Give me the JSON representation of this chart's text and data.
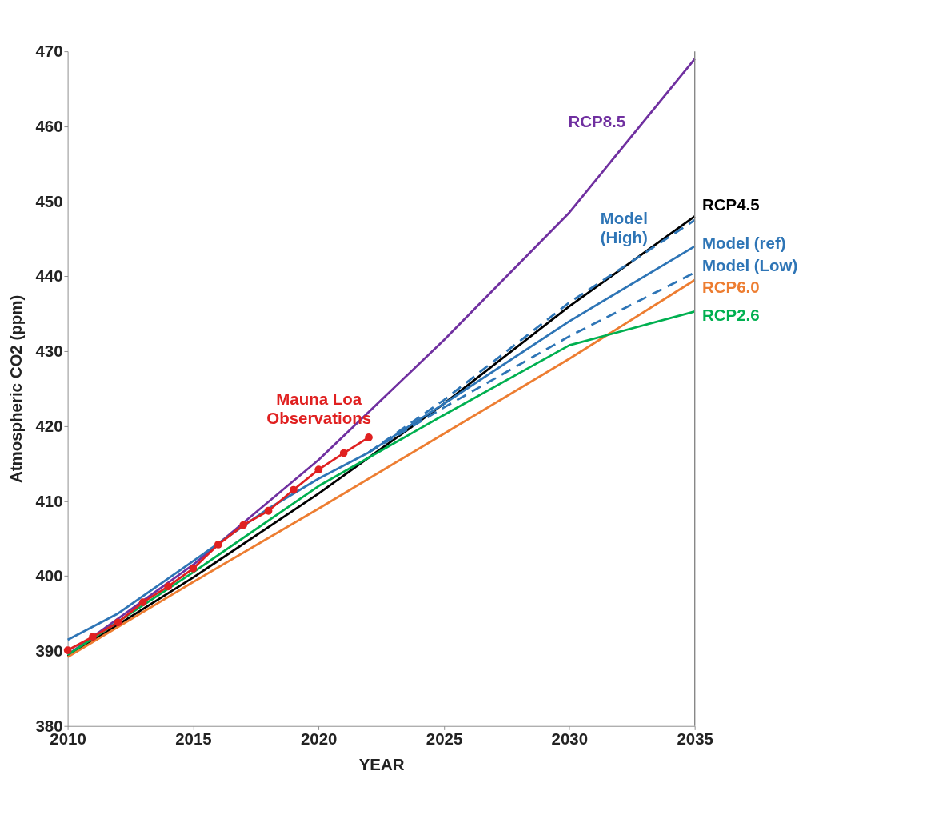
{
  "chart_data": {
    "type": "line",
    "xlabel": "YEAR",
    "ylabel": "Atmospheric CO2 (ppm)",
    "xlim": [
      2010,
      2035
    ],
    "xticks": [
      2010,
      2015,
      2020,
      2025,
      2030,
      2035
    ],
    "ylim": [
      380,
      470
    ],
    "yticks": [
      380,
      390,
      400,
      410,
      420,
      430,
      440,
      450,
      460,
      470
    ],
    "grid": false,
    "marker": "none",
    "line_style": "solid",
    "series": [
      {
        "name": "RCP8.5",
        "color": "#7030a0",
        "x": [
          2010,
          2015,
          2020,
          2025,
          2030,
          2035
        ],
        "values": [
          389.5,
          401.5,
          415.5,
          431.5,
          448.5,
          469
        ]
      },
      {
        "name": "RCP4.5",
        "color": "#000000",
        "x": [
          2010,
          2015,
          2020,
          2025,
          2030,
          2035
        ],
        "values": [
          389.3,
          399.8,
          411,
          423,
          436,
          448
        ]
      },
      {
        "name": "Model (ref)",
        "color": "#2e75b6",
        "x": [
          2010,
          2012,
          2015,
          2018,
          2020,
          2022,
          2025,
          2030,
          2035
        ],
        "values": [
          391.5,
          395,
          402,
          409,
          413,
          416.5,
          423,
          434,
          444
        ]
      },
      {
        "name": "Model (High)",
        "color": "#2e75b6",
        "line_style": "dashed",
        "x": [
          2022,
          2025,
          2030,
          2035
        ],
        "values": [
          416.5,
          423.5,
          436.5,
          447.5
        ]
      },
      {
        "name": "Model (Low)",
        "color": "#2e75b6",
        "line_style": "dashed",
        "x": [
          2022,
          2025,
          2030,
          2035
        ],
        "values": [
          416.5,
          422.5,
          432,
          440.5
        ]
      },
      {
        "name": "RCP6.0",
        "color": "#ed7d31",
        "x": [
          2010,
          2015,
          2020,
          2025,
          2030,
          2035
        ],
        "values": [
          389.2,
          399.2,
          409,
          419,
          429,
          439.5
        ]
      },
      {
        "name": "RCP2.6",
        "color": "#00b050",
        "x": [
          2010,
          2015,
          2020,
          2025,
          2030,
          2035
        ],
        "values": [
          389.5,
          400.5,
          412,
          421.5,
          430.8,
          435.3
        ]
      },
      {
        "name": "Mauna Loa Observations",
        "color": "#e02020",
        "marker": "circle",
        "x": [
          2010,
          2011,
          2012,
          2013,
          2014,
          2015,
          2016,
          2017,
          2018,
          2019,
          2020,
          2021,
          2022
        ],
        "values": [
          390.1,
          391.9,
          393.8,
          396.5,
          398.6,
          401.0,
          404.2,
          406.8,
          408.7,
          411.5,
          414.2,
          416.4,
          418.5
        ]
      }
    ]
  }
}
